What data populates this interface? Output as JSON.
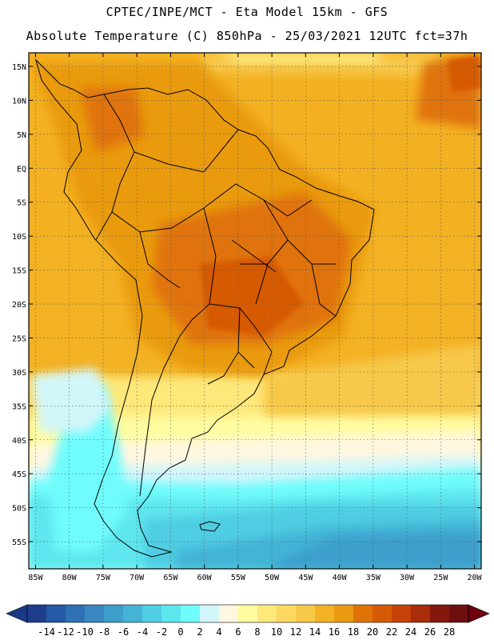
{
  "header": {
    "line1": "CPTEC/INPE/MCT -  Eta Model 15km - GFS",
    "line2": "Absolute Temperature (C) 850hPa - 25/03/2021 12UTC fct=37h"
  },
  "map": {
    "region": "South America",
    "lon_range": [
      -86,
      -19
    ],
    "lat_range": [
      -59,
      17
    ],
    "lat_ticks": [
      "15N",
      "10N",
      "5N",
      "EQ",
      "5S",
      "10S",
      "15S",
      "20S",
      "25S",
      "30S",
      "35S",
      "40S",
      "45S",
      "50S",
      "55S"
    ],
    "lat_values": [
      15,
      10,
      5,
      0,
      -5,
      -10,
      -15,
      -20,
      -25,
      -30,
      -35,
      -40,
      -45,
      -50,
      -55
    ],
    "lon_ticks": [
      "85W",
      "80W",
      "75W",
      "70W",
      "65W",
      "60W",
      "55W",
      "50W",
      "45W",
      "40W",
      "35W",
      "30W",
      "25W",
      "20W"
    ],
    "lon_values": [
      -85,
      -80,
      -75,
      -70,
      -65,
      -60,
      -55,
      -50,
      -45,
      -40,
      -35,
      -30,
      -25,
      -20
    ]
  },
  "colorbar": {
    "labels": [
      "-14",
      "-12",
      "-10",
      "-8",
      "-6",
      "-4",
      "-2",
      "0",
      "2",
      "4",
      "6",
      "8",
      "10",
      "12",
      "14",
      "16",
      "18",
      "20",
      "22",
      "24",
      "26",
      "28"
    ],
    "colors": [
      "#1f3d8c",
      "#2459a6",
      "#2e72b5",
      "#3a87c2",
      "#3c9fcc",
      "#43b4d6",
      "#4fcde3",
      "#5ee6ee",
      "#6ffcfc",
      "#d2f6fa",
      "#fff7e0",
      "#fffca0",
      "#fde87a",
      "#fbd860",
      "#f7c848",
      "#f3b124",
      "#e99a10",
      "#e07308",
      "#d65a06",
      "#c44207",
      "#a82d08",
      "#84180c",
      "#6d0f0f"
    ],
    "under_color": "#1a3a88",
    "over_color": "#6e0010"
  }
}
